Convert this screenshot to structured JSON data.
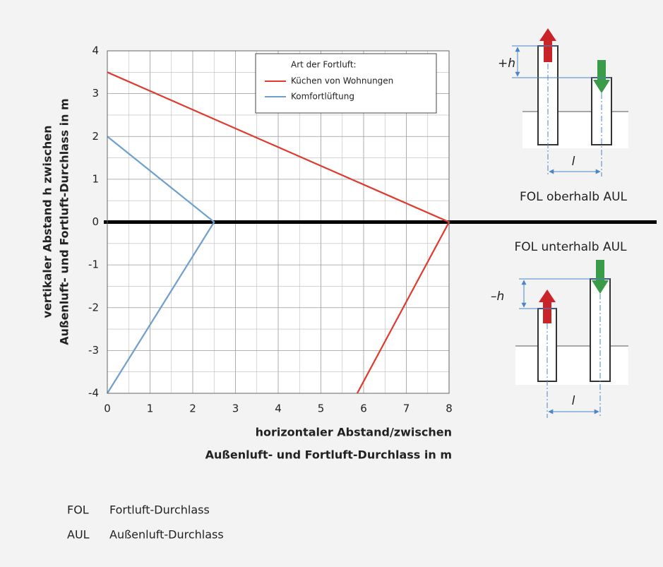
{
  "chart_data": {
    "type": "line",
    "xlabel": [
      "horizontaler Abstand/zwischen",
      "Außenluft- und Fortluft-Durchlass in m"
    ],
    "ylabel": [
      "vertikaler Abstand h zwischen",
      "Außenluft- und Fortluft-Durchlass in m"
    ],
    "legend_title": "Art der Fortluft:",
    "series": [
      {
        "name": "Küchen von Wohnungen",
        "color": "#e03a2f",
        "x": [
          0,
          8,
          5.85
        ],
        "values": [
          3.5,
          0,
          -4
        ]
      },
      {
        "name": "Komfortlüftung",
        "color": "#6f9fd0",
        "x": [
          0,
          2.5,
          0
        ],
        "values": [
          2,
          0,
          -4
        ]
      }
    ],
    "xlim": [
      0,
      8
    ],
    "xticks": [
      0,
      1,
      2,
      3,
      4,
      5,
      6,
      7,
      8
    ],
    "ylim": [
      -4,
      4
    ],
    "yticks": [
      -4,
      -3,
      -2,
      -1,
      0,
      1,
      2,
      3,
      4
    ],
    "grid": true,
    "minor_grid": true,
    "legend": "upper right"
  },
  "diagrams": {
    "upper": {
      "height": "+h",
      "distance": "l",
      "caption": "FOL oberhalb AUL"
    },
    "lower": {
      "height": "–h",
      "distance": "l",
      "caption": "FOL unterhalb AUL"
    }
  },
  "footnotes": [
    {
      "abbr": "FOL",
      "text": "Fortluft-Durchlass"
    },
    {
      "abbr": "AUL",
      "text": "Außenluft-Durchlass"
    }
  ]
}
